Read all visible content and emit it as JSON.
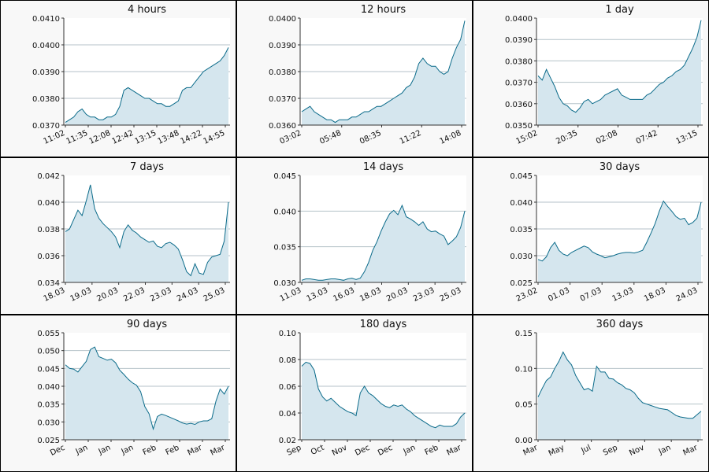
{
  "colors": {
    "line": "#0b6b8a",
    "fill": "#d5e6ee",
    "grid": "#b4c2c8",
    "panel_bg": "#f8f8f8",
    "plot_bg": "#ffffff"
  },
  "chart_data": [
    {
      "type": "area",
      "title": "4 hours",
      "grid": true,
      "ylim": [
        0.037,
        0.041
      ],
      "yticks": [
        "0.0410",
        "0.0400",
        "0.0390",
        "0.0380",
        "0.0370"
      ],
      "xticks": [
        "11:02",
        "11:35",
        "12:08",
        "12:42",
        "13:15",
        "13:48",
        "14:22",
        "14:55"
      ],
      "series": [
        {
          "values": [
            0.0371,
            0.0372,
            0.0373,
            0.0375,
            0.0376,
            0.0374,
            0.0373,
            0.0373,
            0.0372,
            0.0372,
            0.0373,
            0.0373,
            0.0374,
            0.0377,
            0.0383,
            0.0384,
            0.0383,
            0.0382,
            0.0381,
            0.038,
            0.038,
            0.0379,
            0.0378,
            0.0378,
            0.0377,
            0.0377,
            0.0378,
            0.0379,
            0.0383,
            0.0384,
            0.0384,
            0.0386,
            0.0388,
            0.039,
            0.0391,
            0.0392,
            0.0393,
            0.0394,
            0.0396,
            0.0399
          ]
        }
      ]
    },
    {
      "type": "area",
      "title": "12 hours",
      "grid": true,
      "ylim": [
        0.036,
        0.04
      ],
      "yticks": [
        "0.0400",
        "0.0390",
        "0.0380",
        "0.0370",
        "0.0360"
      ],
      "xticks": [
        "03:02",
        "05:48",
        "08:35",
        "11:22",
        "14:08"
      ],
      "series": [
        {
          "values": [
            0.0365,
            0.0366,
            0.0367,
            0.0365,
            0.0364,
            0.0363,
            0.0362,
            0.0362,
            0.0361,
            0.0362,
            0.0362,
            0.0362,
            0.0363,
            0.0363,
            0.0364,
            0.0365,
            0.0365,
            0.0366,
            0.0367,
            0.0367,
            0.0368,
            0.0369,
            0.037,
            0.0371,
            0.0372,
            0.0374,
            0.0375,
            0.0378,
            0.0383,
            0.0385,
            0.0383,
            0.0382,
            0.0382,
            0.038,
            0.0379,
            0.038,
            0.0385,
            0.0389,
            0.0392,
            0.0399
          ]
        }
      ]
    },
    {
      "type": "area",
      "title": "1 day",
      "grid": true,
      "ylim": [
        0.035,
        0.04
      ],
      "yticks": [
        "0.0400",
        "0.0390",
        "0.0380",
        "0.0370",
        "0.0360",
        "0.0350"
      ],
      "xticks": [
        "15:02",
        "20:35",
        "02:08",
        "07:42",
        "13:15"
      ],
      "series": [
        {
          "values": [
            0.0373,
            0.0371,
            0.0376,
            0.0372,
            0.0368,
            0.0363,
            0.036,
            0.0359,
            0.0357,
            0.0356,
            0.0358,
            0.0361,
            0.0362,
            0.036,
            0.0361,
            0.0362,
            0.0364,
            0.0365,
            0.0366,
            0.0367,
            0.0364,
            0.0363,
            0.0362,
            0.0362,
            0.0362,
            0.0362,
            0.0364,
            0.0365,
            0.0367,
            0.0369,
            0.037,
            0.0372,
            0.0373,
            0.0375,
            0.0376,
            0.0378,
            0.0382,
            0.0386,
            0.0391,
            0.0399
          ]
        }
      ]
    },
    {
      "type": "area",
      "title": "7 days",
      "grid": true,
      "ylim": [
        0.034,
        0.042
      ],
      "yticks": [
        "0.042",
        "0.040",
        "0.038",
        "0.036",
        "0.034"
      ],
      "xticks": [
        "18.03",
        "19.03",
        "20.03",
        "22.03",
        "23.03",
        "24.03",
        "25.03"
      ],
      "series": [
        {
          "values": [
            0.0378,
            0.038,
            0.0387,
            0.0394,
            0.039,
            0.0401,
            0.0413,
            0.0395,
            0.0388,
            0.0384,
            0.0381,
            0.0378,
            0.0374,
            0.0366,
            0.0378,
            0.0383,
            0.0379,
            0.0377,
            0.0374,
            0.0372,
            0.037,
            0.0371,
            0.0367,
            0.0366,
            0.0369,
            0.037,
            0.0368,
            0.0365,
            0.0357,
            0.0348,
            0.0345,
            0.0354,
            0.0347,
            0.0346,
            0.0355,
            0.0359,
            0.036,
            0.0361,
            0.0371,
            0.04
          ]
        }
      ]
    },
    {
      "type": "area",
      "title": "14 days",
      "grid": true,
      "ylim": [
        0.03,
        0.045
      ],
      "yticks": [
        "0.045",
        "0.040",
        "0.035",
        "0.030"
      ],
      "xticks": [
        "11.03",
        "13.03",
        "16.03",
        "18.03",
        "20.03",
        "23.03",
        "25.03"
      ],
      "series": [
        {
          "values": [
            0.0303,
            0.0305,
            0.0305,
            0.0304,
            0.0303,
            0.0303,
            0.0304,
            0.0305,
            0.0305,
            0.0304,
            0.0303,
            0.0305,
            0.0306,
            0.0304,
            0.0306,
            0.0315,
            0.0328,
            0.0345,
            0.0357,
            0.0372,
            0.0385,
            0.0396,
            0.0401,
            0.0395,
            0.0408,
            0.0392,
            0.0389,
            0.0385,
            0.038,
            0.0385,
            0.0375,
            0.0371,
            0.0372,
            0.0368,
            0.0365,
            0.0353,
            0.0358,
            0.0364,
            0.0377,
            0.04
          ]
        }
      ]
    },
    {
      "type": "area",
      "title": "30 days",
      "grid": true,
      "ylim": [
        0.025,
        0.045
      ],
      "yticks": [
        "0.045",
        "0.040",
        "0.035",
        "0.030",
        "0.025"
      ],
      "xticks": [
        "23.02",
        "01.03",
        "07.03",
        "13.03",
        "18.03",
        "24.03"
      ],
      "series": [
        {
          "values": [
            0.0293,
            0.029,
            0.0298,
            0.0315,
            0.0325,
            0.031,
            0.0303,
            0.03,
            0.0306,
            0.031,
            0.0314,
            0.0318,
            0.0315,
            0.0307,
            0.0303,
            0.03,
            0.0296,
            0.0298,
            0.03,
            0.0303,
            0.0305,
            0.0306,
            0.0306,
            0.0305,
            0.0307,
            0.031,
            0.0325,
            0.0342,
            0.036,
            0.0383,
            0.0402,
            0.0392,
            0.0383,
            0.0373,
            0.0368,
            0.037,
            0.0358,
            0.0362,
            0.037,
            0.04
          ]
        }
      ]
    },
    {
      "type": "area",
      "title": "90 days",
      "grid": true,
      "ylim": [
        0.025,
        0.055
      ],
      "yticks": [
        "0.055",
        "0.050",
        "0.045",
        "0.040",
        "0.035",
        "0.030",
        "0.025"
      ],
      "xticks": [
        "Dec",
        "Jan",
        "Jan",
        "Jan",
        "Feb",
        "Feb",
        "Mar",
        "Mar"
      ],
      "series": [
        {
          "values": [
            0.046,
            0.045,
            0.0448,
            0.044,
            0.0455,
            0.047,
            0.0503,
            0.051,
            0.0483,
            0.0478,
            0.0473,
            0.0476,
            0.0466,
            0.0445,
            0.0433,
            0.042,
            0.041,
            0.0403,
            0.0385,
            0.0343,
            0.0323,
            0.028,
            0.0315,
            0.0322,
            0.0318,
            0.0313,
            0.0308,
            0.0303,
            0.0297,
            0.0294,
            0.0296,
            0.0293,
            0.03,
            0.0303,
            0.0303,
            0.0309,
            0.0358,
            0.0392,
            0.0378,
            0.04
          ]
        }
      ]
    },
    {
      "type": "area",
      "title": "180 days",
      "grid": true,
      "ylim": [
        0.02,
        0.1
      ],
      "yticks": [
        "0.10",
        "0.08",
        "0.06",
        "0.04",
        "0.02"
      ],
      "xticks": [
        "Sep",
        "Oct",
        "Nov",
        "Dec",
        "Dec",
        "Jan",
        "Feb",
        "Mar"
      ],
      "series": [
        {
          "values": [
            0.075,
            0.078,
            0.077,
            0.072,
            0.058,
            0.052,
            0.049,
            0.051,
            0.048,
            0.045,
            0.043,
            0.041,
            0.04,
            0.038,
            0.055,
            0.06,
            0.055,
            0.053,
            0.05,
            0.047,
            0.045,
            0.044,
            0.046,
            0.045,
            0.046,
            0.043,
            0.041,
            0.038,
            0.036,
            0.034,
            0.032,
            0.03,
            0.029,
            0.031,
            0.03,
            0.03,
            0.03,
            0.032,
            0.037,
            0.04
          ]
        }
      ]
    },
    {
      "type": "area",
      "title": "360 days",
      "grid": true,
      "ylim": [
        0.0,
        0.15
      ],
      "yticks": [
        "0.15",
        "0.10",
        "0.05",
        "0.00"
      ],
      "xticks": [
        "Mar",
        "May",
        "Jul",
        "Sep",
        "Nov",
        "Jan",
        "Mar"
      ],
      "series": [
        {
          "values": [
            0.06,
            0.072,
            0.083,
            0.088,
            0.1,
            0.11,
            0.123,
            0.112,
            0.105,
            0.09,
            0.08,
            0.07,
            0.072,
            0.068,
            0.103,
            0.095,
            0.095,
            0.086,
            0.085,
            0.08,
            0.077,
            0.072,
            0.07,
            0.066,
            0.058,
            0.052,
            0.05,
            0.048,
            0.046,
            0.044,
            0.043,
            0.042,
            0.038,
            0.034,
            0.032,
            0.031,
            0.03,
            0.03,
            0.035,
            0.04
          ]
        }
      ]
    }
  ]
}
